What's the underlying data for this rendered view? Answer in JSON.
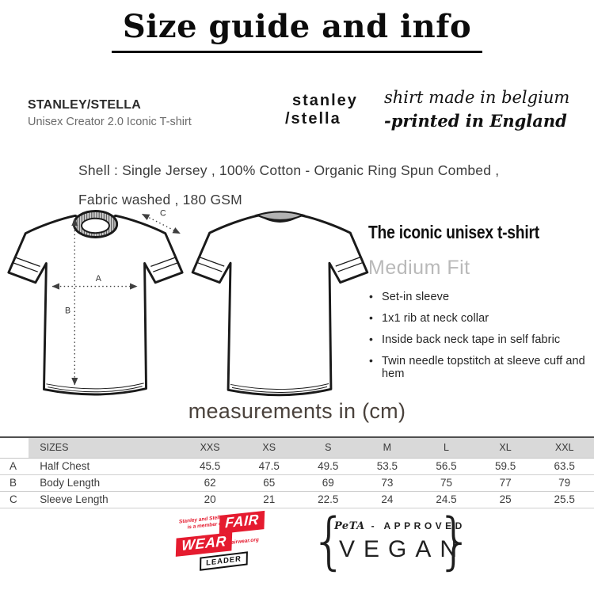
{
  "page": {
    "title": "Size guide and info"
  },
  "brand": {
    "name": "STANLEY/STELLA",
    "product": "Unisex Creator 2.0 Iconic T-shirt"
  },
  "logo": {
    "line1": "stanley",
    "line2": "/stella"
  },
  "origin": {
    "line1": "shirt made in belgium",
    "line2": "-printed in England"
  },
  "fabric": {
    "text": "Shell : Single Jersey , 100% Cotton - Organic Ring Spun Combed , Fabric washed , 180 GSM"
  },
  "diagram": {
    "labels": {
      "a": "A",
      "b": "B",
      "c": "C"
    }
  },
  "info": {
    "heading": "The iconic unisex t-shirt",
    "fit": "Medium Fit",
    "features": [
      "Set-in sleeve",
      "1x1 rib at neck collar",
      "Inside back neck tape in self fabric",
      "Twin needle topstitch at sleeve cuff and hem"
    ]
  },
  "measurements": {
    "heading": "measurements in (cm)"
  },
  "table": {
    "corner": "SIZES",
    "size_headers": [
      "XXS",
      "XS",
      "S",
      "M",
      "L",
      "XL",
      "XXL"
    ],
    "rows": [
      {
        "key": "A",
        "label": "Half Chest",
        "values": [
          "45.5",
          "47.5",
          "49.5",
          "53.5",
          "56.5",
          "59.5",
          "63.5"
        ]
      },
      {
        "key": "B",
        "label": "Body Length",
        "values": [
          "62",
          "65",
          "69",
          "73",
          "75",
          "77",
          "79"
        ]
      },
      {
        "key": "C",
        "label": "Sleeve Length",
        "values": [
          "20",
          "21",
          "22.5",
          "24",
          "24.5",
          "25",
          "25.5"
        ]
      }
    ]
  },
  "badges": {
    "fairwear": {
      "member_line1": "Stanley and Stella",
      "member_line2": "is a member of",
      "word1": "FAIR",
      "word2": "WEAR",
      "url": "fairwear.org",
      "leader": "LEADER"
    },
    "vegan": {
      "brand": "PeTA",
      "separator": "-",
      "approved": "APPROVED",
      "word": "VEGAN",
      "brace_left": "{",
      "brace_right": "}"
    }
  },
  "colors": {
    "fairwear_red": "#e51b2f",
    "table_header_bg": "#d9d9d9"
  }
}
